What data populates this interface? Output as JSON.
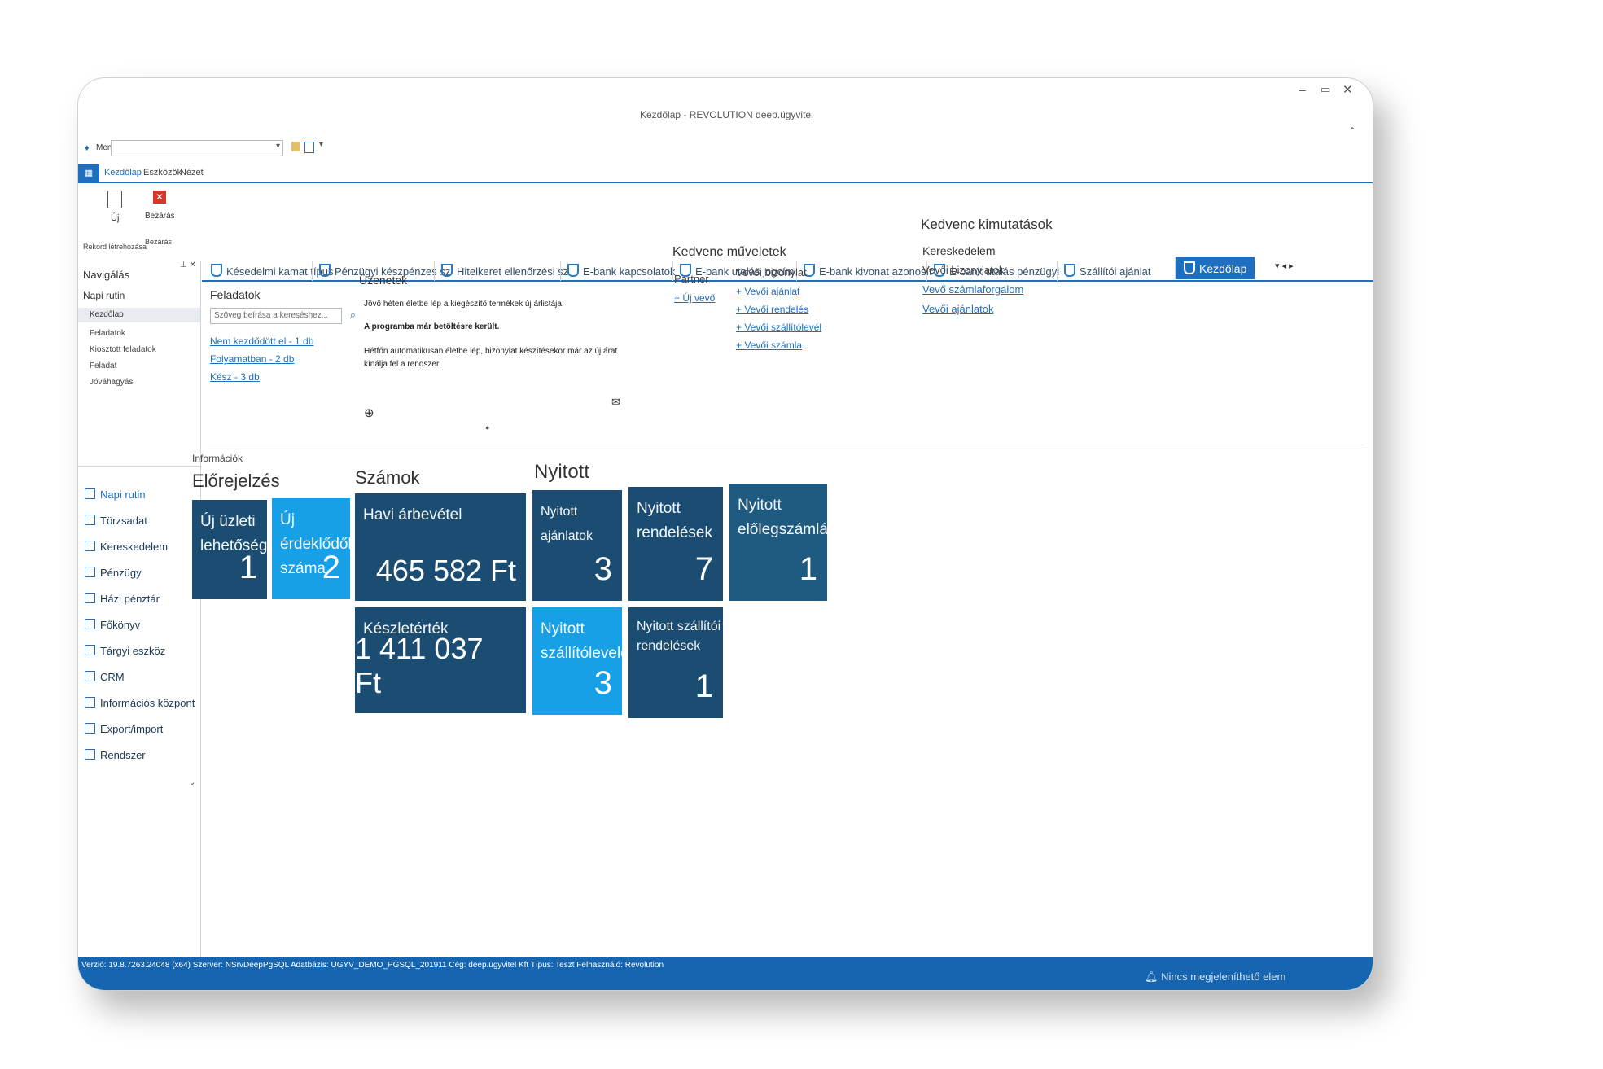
{
  "window": {
    "title": "Kezdőlap - REVOLUTION deep.ügyvitel",
    "controls": [
      "–",
      "▭",
      "✕"
    ]
  },
  "menu": {
    "label": "Menü",
    "dropdown_value": ""
  },
  "ribbon_tabs": [
    "Kezdőlap",
    "Eszközök",
    "Nézet"
  ],
  "ribbon": {
    "new_label": "Új",
    "close_label": "Bezárás",
    "group1": "Rekord létrehozása",
    "group2": "Bezárás"
  },
  "doc_tabs": [
    "Késedelmi kamat típus",
    "Pénzügyi készpénzes sz",
    "Hitelkeret ellenőrzési sz",
    "E-bank kapcsolatok",
    "E-bank utalás jogcím",
    "E-bank kivonat azonosít",
    "E-bank utalás pénzügyi",
    "Szállítói ajánlat",
    "Kezdőlap"
  ],
  "sidebar": {
    "title": "Navigálás",
    "section": "Napi rutin",
    "items": [
      "Kezdőlap",
      "Feladatok",
      "Kiosztott feladatok",
      "Feladat",
      "Jóváhagyás"
    ],
    "modules": [
      "Napi rutin",
      "Törzsadat",
      "Kereskedelem",
      "Pénzügy",
      "Házi pénztár",
      "Főkönyv",
      "Tárgyi eszköz",
      "CRM",
      "Információs központ",
      "Export/import",
      "Rendszer"
    ]
  },
  "tasks": {
    "title": "Feladatok",
    "search_placeholder": "Szöveg beírása a kereséshez...",
    "links": [
      "Nem kezdődött el - 1 db",
      "Folyamatban - 2 db",
      "Kész - 3 db"
    ]
  },
  "messages": {
    "title": "Üzenetek",
    "line1": "Jövő héten életbe lép a kiegészítő termékek új árlistája.",
    "line2": "A programba már betöltésre került.",
    "line3": "Hétfőn automatikusan életbe lép, bizonylat készítésekor már az új árat kínálja fel a rendszer."
  },
  "fav_ops": {
    "title": "Kedvenc műveletek",
    "col1_title": "Partner",
    "col1_links": [
      "+ Új vevő"
    ],
    "col2_title": "Vevői bizonylat",
    "col2_links": [
      "+ Vevői ajánlat",
      "+ Vevői rendelés",
      "+ Vevői szállítólevél",
      "+ Vevői számla"
    ]
  },
  "fav_reports": {
    "title": "Kedvenc kimutatások",
    "group": "Kereskedelem",
    "sub": "Vevői bizonylatok",
    "links": [
      "Vevő számlaforgalom",
      "Vevői ajánlatok"
    ]
  },
  "info": {
    "title": "Információk",
    "sections": [
      "Előrejelzés",
      "Számok",
      "Nyitott"
    ],
    "tiles": [
      {
        "label": "Új üzleti lehetőségek",
        "value": "1"
      },
      {
        "label": "Új érdeklődők száma",
        "value": "2"
      },
      {
        "label": "Havi árbevétel",
        "value": "465 582 Ft"
      },
      {
        "label": "Nyitott ajánlatok",
        "value": "3"
      },
      {
        "label": "Nyitott rendelések",
        "value": "7"
      },
      {
        "label": "Nyitott előlegszámlák",
        "value": "1"
      },
      {
        "label": "Készletérték",
        "value": "1 411 037 Ft"
      },
      {
        "label": "Nyitott szállítólevelek",
        "value": "3"
      },
      {
        "label": "Nyitott szállítói rendelések",
        "value": "1"
      }
    ]
  },
  "status": {
    "left": "Verzió: 19.8.7263.24048 (x64)   Szerver: NSrvDeepPgSQL   Adatbázis: UGYV_DEMO_PGSQL_201911   Cég: deep.ügyvitel Kft   Típus: Teszt   Felhasználó: Revolution",
    "right": "Nincs megjeleníthető elem"
  },
  "colors": {
    "accent": "#1e6fc0",
    "tile_dark": "#1b4d72",
    "tile_light": "#18a0e6",
    "status_bar": "#1565b0"
  }
}
